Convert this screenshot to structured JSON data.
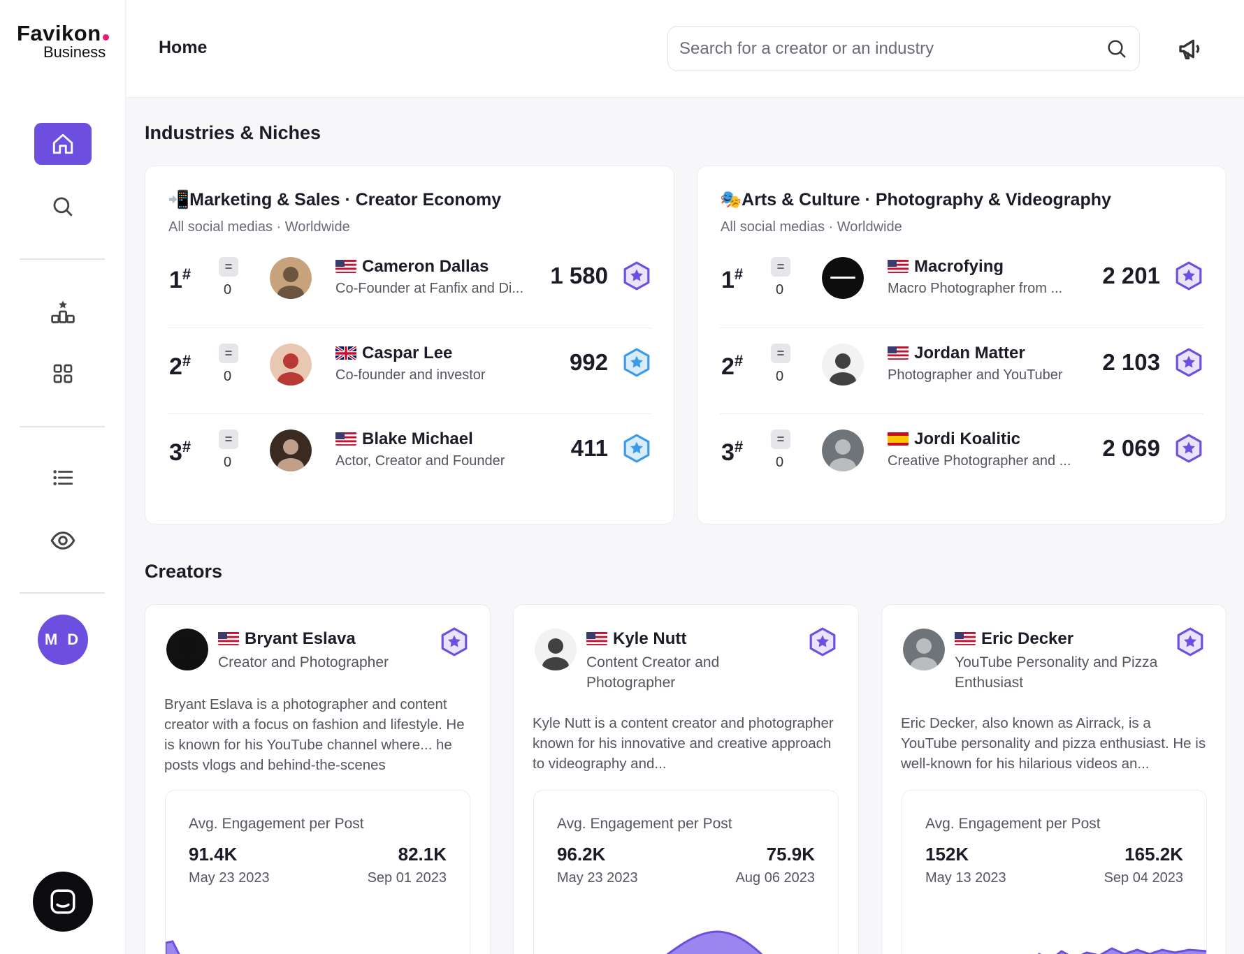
{
  "brand": {
    "name": "Favikon",
    "sub": "Business"
  },
  "header": {
    "title": "Home",
    "search_placeholder": "Search for a creator or an industry"
  },
  "sidebar": {
    "items": [
      "home-icon",
      "search-icon",
      "ranking-icon",
      "grid-icon",
      "list-icon",
      "eye-icon"
    ],
    "user_initials": "M D"
  },
  "industries": {
    "title": "Industries & Niches",
    "cards": [
      {
        "emoji": "📲",
        "title": "Marketing & Sales · Creator Economy",
        "subtitle": "All social medias · Worldwide",
        "rows": [
          {
            "rank": "1",
            "change": "0",
            "flag": "us",
            "name": "Cameron Dallas",
            "desc": "Co-Founder at Fanfix and Di...",
            "score": "1 580",
            "badge": "purple"
          },
          {
            "rank": "2",
            "change": "0",
            "flag": "uk",
            "name": "Caspar Lee",
            "desc": "Co-founder and investor",
            "score": "992",
            "badge": "blue"
          },
          {
            "rank": "3",
            "change": "0",
            "flag": "us",
            "name": "Blake Michael",
            "desc": "Actor, Creator and Founder",
            "score": "411",
            "badge": "blue"
          }
        ]
      },
      {
        "emoji": "🎭",
        "title": "Arts & Culture · Photography & Videography",
        "subtitle": "All social medias · Worldwide",
        "rows": [
          {
            "rank": "1",
            "change": "0",
            "flag": "us",
            "name": "Macrofying",
            "desc": "Macro Photographer from ...",
            "score": "2 201",
            "badge": "purple"
          },
          {
            "rank": "2",
            "change": "0",
            "flag": "us",
            "name": "Jordan Matter",
            "desc": "Photographer and YouTuber",
            "score": "2 103",
            "badge": "purple"
          },
          {
            "rank": "3",
            "change": "0",
            "flag": "es",
            "name": "Jordi Koalitic",
            "desc": "Creative Photographer and ...",
            "score": "2 069",
            "badge": "purple"
          }
        ]
      }
    ]
  },
  "creators": {
    "title": "Creators",
    "items": [
      {
        "flag": "us",
        "name": "Bryant Eslava",
        "role": "Creator and Photographer",
        "bio": "Bryant Eslava is a photographer and content creator with a focus on fashion and lifestyle. He is known for his YouTube channel where... he posts vlogs and behind-the-scenes",
        "eng_label": "Avg. Engagement per Post",
        "v1": "91.4K",
        "d1": "May 23 2023",
        "v2": "82.1K",
        "d2": "Sep 01 2023"
      },
      {
        "flag": "us",
        "name": "Kyle Nutt",
        "role": "Content Creator and Photographer",
        "bio": "Kyle Nutt is a content creator and photographer known for his innovative and creative approach to videography and...",
        "eng_label": "Avg. Engagement per Post",
        "v1": "96.2K",
        "d1": "May 23 2023",
        "v2": "75.9K",
        "d2": "Aug 06 2023"
      },
      {
        "flag": "us",
        "name": "Eric Decker",
        "role": "YouTube Personality and Pizza Enthusiast",
        "bio": "Eric Decker, also known as Airrack, is a YouTube personality and pizza enthusiast. He is well-known for his hilarious videos an...",
        "eng_label": "Avg. Engagement per Post",
        "v1": "152K",
        "d1": "May 13 2023",
        "v2": "165.2K",
        "d2": "Sep 04 2023"
      }
    ]
  },
  "colors": {
    "accent": "#6d4fe0",
    "badge_purple": "#6d4fe0",
    "badge_blue": "#3b9be8",
    "chart_fill": "#7c5ce6"
  }
}
